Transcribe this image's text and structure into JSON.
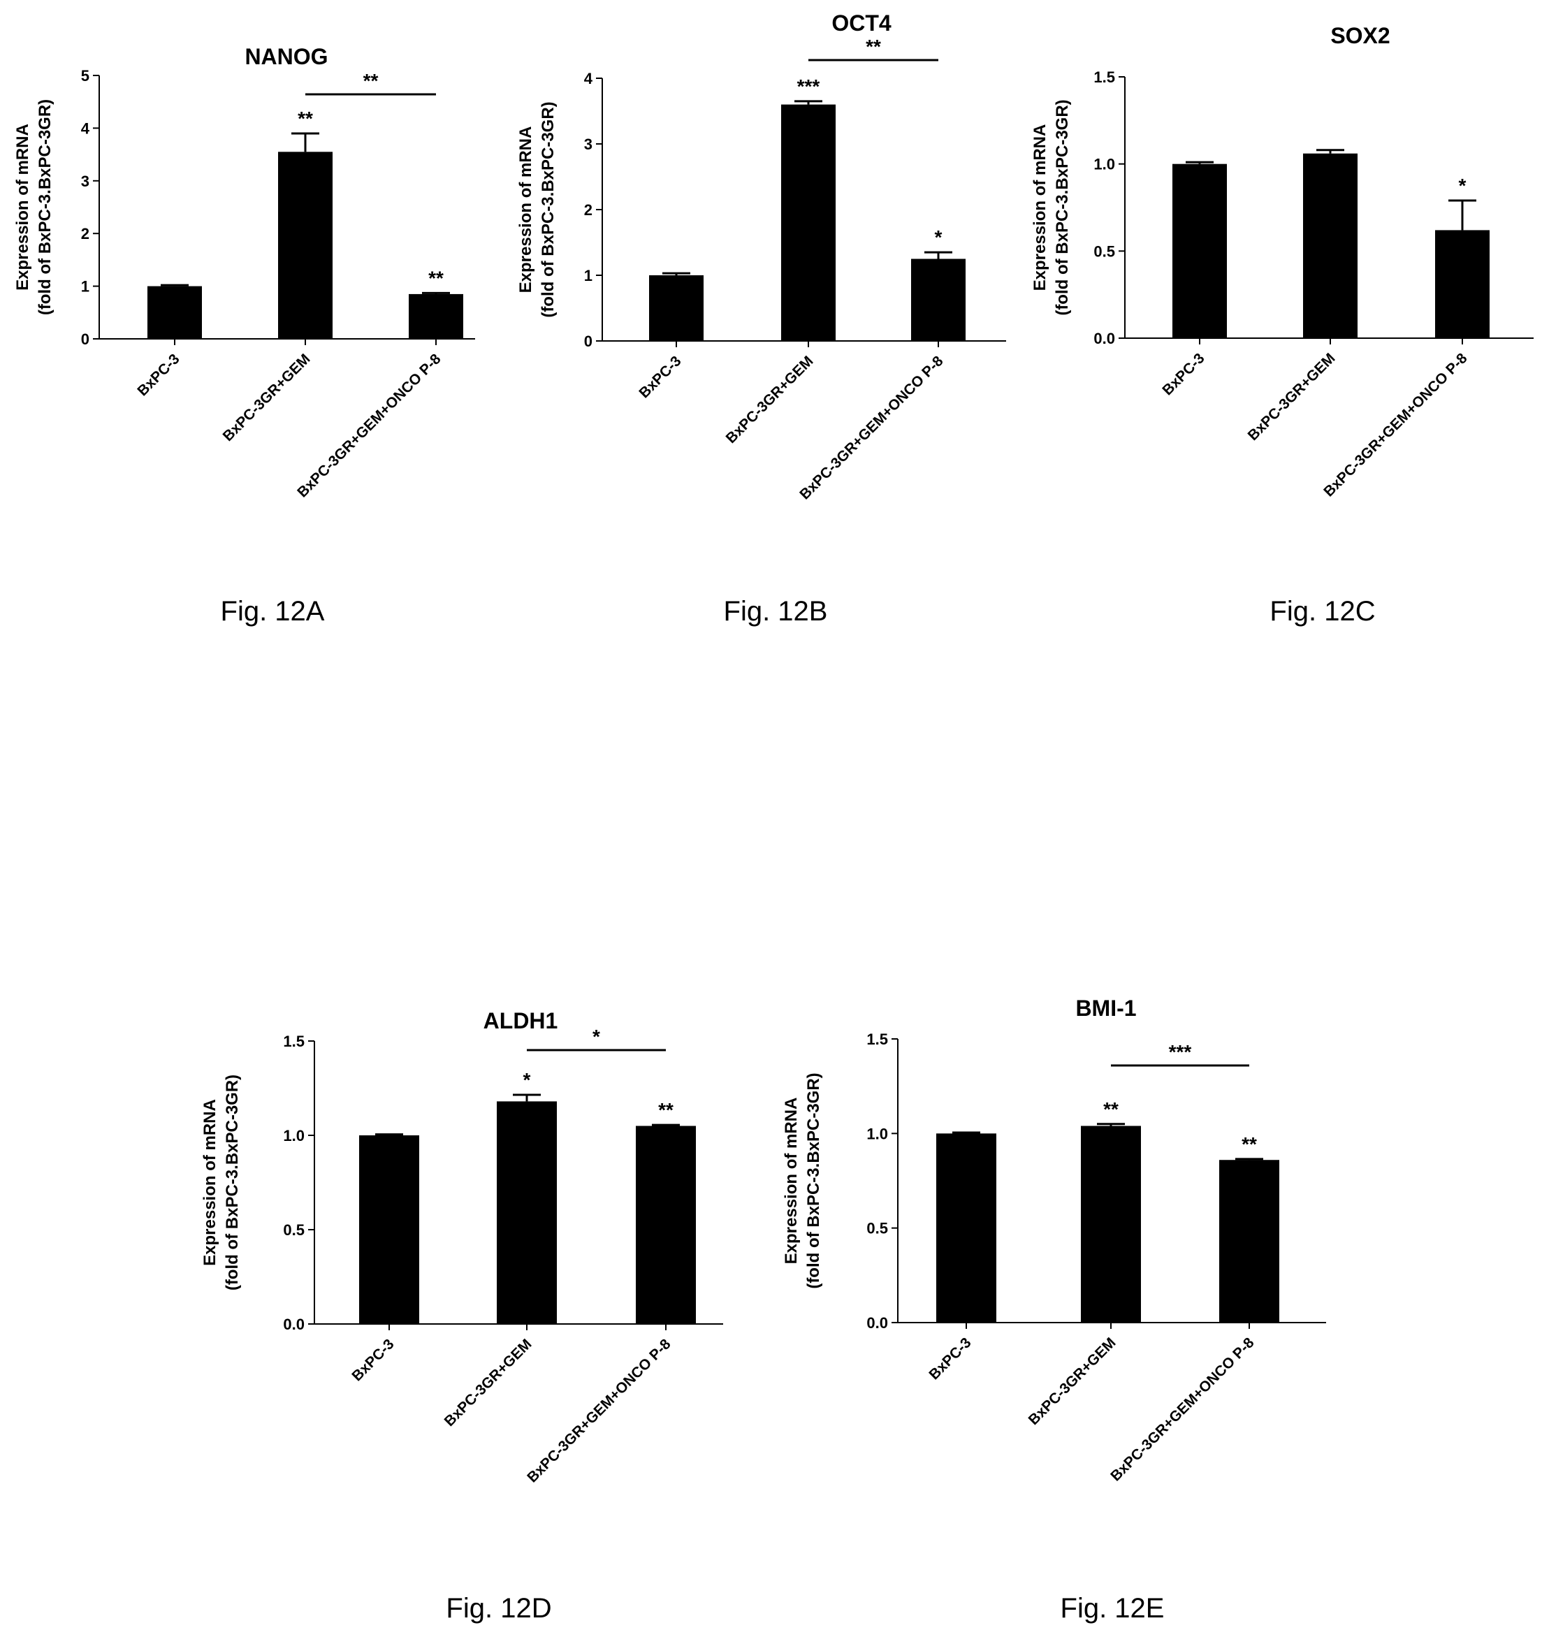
{
  "chart_data": [
    {
      "type": "bar",
      "title": "NANOG",
      "caption": "Fig. 12A",
      "ylabel": [
        "Expression of mRNA",
        "(fold of BxPC-3.BxPC-3GR)"
      ],
      "categories": [
        "BxPC-3",
        "BxPC-3GR+GEM",
        "BxPC-3GR+GEM+ONCO P-8"
      ],
      "values": [
        1.0,
        3.55,
        0.85
      ],
      "errors": [
        0.02,
        0.35,
        0.02
      ],
      "ylim": [
        0,
        5
      ],
      "yticks": [
        "0",
        "1",
        "2",
        "3",
        "4",
        "5"
      ],
      "bar_labels": [
        "",
        "**",
        "**"
      ],
      "brackets": [
        {
          "from": 1,
          "to": 2,
          "label": "**"
        }
      ]
    },
    {
      "type": "bar",
      "title": "OCT4",
      "caption": "Fig. 12B",
      "ylabel": [
        "Expression of mRNA",
        "(fold of BxPC-3.BxPC-3GR)"
      ],
      "categories": [
        "BxPC-3",
        "BxPC-3GR+GEM",
        "BxPC-3GR+GEM+ONCO P-8"
      ],
      "values": [
        1.0,
        3.6,
        1.25
      ],
      "errors": [
        0.03,
        0.05,
        0.1
      ],
      "ylim": [
        0,
        4
      ],
      "yticks": [
        "0",
        "1",
        "2",
        "3",
        "4"
      ],
      "bar_labels": [
        "",
        "***",
        "*"
      ],
      "brackets": [
        {
          "from": 1,
          "to": 2,
          "label": "**"
        }
      ]
    },
    {
      "type": "bar",
      "title": "SOX2",
      "caption": "Fig. 12C",
      "ylabel": [
        "Expression of mRNA",
        "(fold of BxPC-3.BxPC-3GR)"
      ],
      "categories": [
        "BxPC-3",
        "BxPC-3GR+GEM",
        "BxPC-3GR+GEM+ONCO P-8"
      ],
      "values": [
        1.0,
        1.06,
        0.62
      ],
      "errors": [
        0.01,
        0.02,
        0.17
      ],
      "ylim": [
        0,
        1.5
      ],
      "yticks": [
        "0.0",
        "0.5",
        "1.0",
        "1.5"
      ],
      "bar_labels": [
        "",
        "",
        "*"
      ],
      "brackets": []
    },
    {
      "type": "bar",
      "title": "ALDH1",
      "caption": "Fig. 12D",
      "ylabel": [
        "Expression of mRNA",
        "(fold of BxPC-3.BxPC-3GR)"
      ],
      "categories": [
        "BxPC-3",
        "BxPC-3GR+GEM",
        "BxPC-3GR+GEM+ONCO P-8"
      ],
      "values": [
        1.0,
        1.18,
        1.05
      ],
      "errors": [
        0.005,
        0.035,
        0.005
      ],
      "ylim": [
        0,
        1.5
      ],
      "yticks": [
        "0.0",
        "0.5",
        "1.0",
        "1.5"
      ],
      "bar_labels": [
        "",
        "*",
        "**"
      ],
      "brackets": [
        {
          "from": 1,
          "to": 2,
          "label": "*"
        }
      ]
    },
    {
      "type": "bar",
      "title": "BMI-1",
      "caption": "Fig. 12E",
      "ylabel": [
        "Expression of mRNA",
        "(fold of BxPC-3.BxPC-3GR)"
      ],
      "categories": [
        "BxPC-3",
        "BxPC-3GR+GEM",
        "BxPC-3GR+GEM+ONCO P-8"
      ],
      "values": [
        1.0,
        1.04,
        0.86
      ],
      "errors": [
        0.005,
        0.01,
        0.005
      ],
      "ylim": [
        0,
        1.5
      ],
      "yticks": [
        "0.0",
        "0.5",
        "1.0",
        "1.5"
      ],
      "bar_labels": [
        "",
        "**",
        "**"
      ],
      "brackets": [
        {
          "from": 1,
          "to": 2,
          "label": "***"
        }
      ]
    }
  ]
}
